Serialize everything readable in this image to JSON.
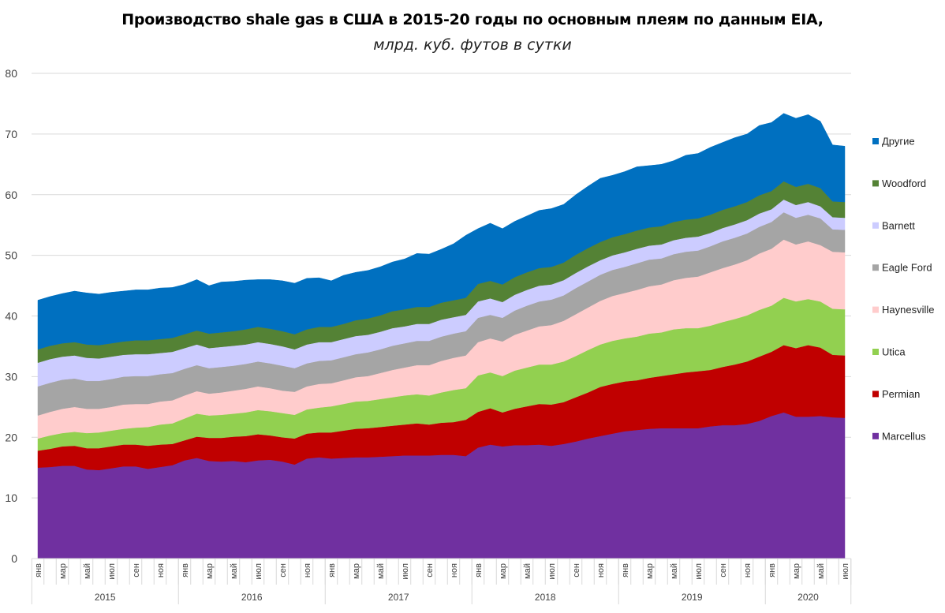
{
  "chart_data": {
    "type": "area",
    "stacked": true,
    "title": "Производство shale gas в США в 2015-20 годы по основным плеям по данным EIA,",
    "subtitle": "млрд. куб. футов в сутки",
    "xlabel": "",
    "ylabel": "",
    "ylim": [
      0,
      80
    ],
    "yticks": [
      0,
      10,
      20,
      30,
      40,
      50,
      60,
      70,
      80
    ],
    "grid": true,
    "legend_position": "right",
    "month_labels": [
      "янв",
      "",
      "мар",
      "",
      "май",
      "",
      "июл",
      "",
      "сен",
      "",
      "ноя",
      ""
    ],
    "years": [
      {
        "label": "2015",
        "months": 12
      },
      {
        "label": "2016",
        "months": 12
      },
      {
        "label": "2017",
        "months": 12
      },
      {
        "label": "2018",
        "months": 12
      },
      {
        "label": "2019",
        "months": 12
      },
      {
        "label": "2020",
        "months": 7
      }
    ],
    "series": [
      {
        "name": "Marcellus",
        "color": "#7030A0",
        "values": [
          15.0,
          15.1,
          15.3,
          15.3,
          14.7,
          14.6,
          14.9,
          15.2,
          15.2,
          14.8,
          15.1,
          15.4,
          16.2,
          16.6,
          16.1,
          16.0,
          16.1,
          15.9,
          16.2,
          16.3,
          16.0,
          15.5,
          16.5,
          16.7,
          16.5,
          16.6,
          16.7,
          16.7,
          16.8,
          16.9,
          17.0,
          17.0,
          17.0,
          17.1,
          17.1,
          16.9,
          18.3,
          18.8,
          18.5,
          18.7,
          18.7,
          18.8,
          18.6,
          18.9,
          19.3,
          19.8,
          20.2,
          20.6,
          21.0,
          21.2,
          21.4,
          21.5,
          21.5,
          21.5,
          21.5,
          21.8,
          22.0,
          22.0,
          22.2,
          22.7,
          23.5,
          24.1,
          23.4,
          23.4,
          23.5,
          23.3,
          23.2
        ]
      },
      {
        "name": "Permian",
        "color": "#C00000",
        "values": [
          2.8,
          3.0,
          3.2,
          3.3,
          3.5,
          3.6,
          3.6,
          3.6,
          3.6,
          3.8,
          3.7,
          3.5,
          3.3,
          3.5,
          3.8,
          3.9,
          4.0,
          4.3,
          4.3,
          4.0,
          4.0,
          4.3,
          4.1,
          4.1,
          4.3,
          4.5,
          4.7,
          4.8,
          4.9,
          5.0,
          5.1,
          5.3,
          5.1,
          5.3,
          5.4,
          6.0,
          5.9,
          6.0,
          5.6,
          6.0,
          6.4,
          6.7,
          6.8,
          6.9,
          7.3,
          7.6,
          8.1,
          8.2,
          8.2,
          8.2,
          8.4,
          8.6,
          8.9,
          9.2,
          9.4,
          9.3,
          9.6,
          10.0,
          10.3,
          10.6,
          10.6,
          11.1,
          11.3,
          11.8,
          11.3,
          10.3,
          10.3
        ]
      },
      {
        "name": "Utica",
        "color": "#92D050",
        "values": [
          2.0,
          2.2,
          2.2,
          2.3,
          2.5,
          2.6,
          2.6,
          2.6,
          2.8,
          3.1,
          3.3,
          3.4,
          3.6,
          3.8,
          3.7,
          3.8,
          3.8,
          3.9,
          4.0,
          4.0,
          4.0,
          3.9,
          4.0,
          4.1,
          4.3,
          4.4,
          4.5,
          4.5,
          4.6,
          4.7,
          4.8,
          4.8,
          4.8,
          5.0,
          5.3,
          5.2,
          6.0,
          5.9,
          6.0,
          6.3,
          6.4,
          6.5,
          6.6,
          6.7,
          6.8,
          7.0,
          7.0,
          7.1,
          7.1,
          7.2,
          7.3,
          7.2,
          7.4,
          7.3,
          7.1,
          7.3,
          7.4,
          7.5,
          7.6,
          7.7,
          7.6,
          7.8,
          7.7,
          7.6,
          7.6,
          7.6,
          7.6
        ]
      },
      {
        "name": "Haynesville",
        "color": "#FFCCCC",
        "values": [
          3.8,
          3.9,
          4.0,
          4.1,
          4.0,
          3.9,
          3.9,
          4.0,
          3.9,
          3.8,
          3.8,
          3.8,
          3.8,
          3.7,
          3.6,
          3.7,
          3.8,
          3.9,
          3.9,
          3.8,
          3.7,
          3.8,
          3.8,
          3.9,
          3.8,
          3.9,
          4.0,
          4.1,
          4.3,
          4.5,
          4.6,
          4.8,
          5.0,
          5.2,
          5.3,
          5.4,
          5.5,
          5.6,
          5.7,
          5.9,
          6.1,
          6.3,
          6.5,
          6.7,
          6.9,
          7.0,
          7.2,
          7.4,
          7.5,
          7.7,
          7.8,
          7.9,
          8.1,
          8.3,
          8.5,
          8.8,
          8.9,
          9.0,
          9.1,
          9.3,
          9.4,
          9.6,
          9.4,
          9.5,
          9.3,
          9.4,
          9.4
        ]
      },
      {
        "name": "Eagle Ford",
        "color": "#A5A5A5",
        "values": [
          4.8,
          4.8,
          4.8,
          4.7,
          4.6,
          4.6,
          4.6,
          4.6,
          4.6,
          4.6,
          4.5,
          4.5,
          4.4,
          4.3,
          4.2,
          4.2,
          4.1,
          4.1,
          4.1,
          4.1,
          4.1,
          3.9,
          3.8,
          3.8,
          3.8,
          3.8,
          3.8,
          3.9,
          3.9,
          4.0,
          4.0,
          4.0,
          4.0,
          4.0,
          4.0,
          4.0,
          4.0,
          3.9,
          3.9,
          4.0,
          4.1,
          4.1,
          4.2,
          4.2,
          4.3,
          4.3,
          4.3,
          4.3,
          4.3,
          4.4,
          4.4,
          4.3,
          4.3,
          4.3,
          4.3,
          4.3,
          4.4,
          4.4,
          4.4,
          4.4,
          4.4,
          4.5,
          4.4,
          4.4,
          4.4,
          3.7,
          3.7
        ]
      },
      {
        "name": "Barnett",
        "color": "#CCCCFF",
        "values": [
          3.9,
          3.9,
          3.8,
          3.8,
          3.8,
          3.7,
          3.7,
          3.6,
          3.6,
          3.6,
          3.5,
          3.5,
          3.4,
          3.4,
          3.3,
          3.3,
          3.3,
          3.2,
          3.2,
          3.2,
          3.2,
          3.1,
          3.1,
          3.1,
          3.0,
          3.0,
          3.0,
          2.9,
          2.9,
          2.9,
          2.8,
          2.8,
          2.8,
          2.8,
          2.7,
          2.7,
          2.7,
          2.7,
          2.6,
          2.6,
          2.6,
          2.6,
          2.5,
          2.5,
          2.5,
          2.5,
          2.4,
          2.4,
          2.4,
          2.4,
          2.3,
          2.3,
          2.3,
          2.3,
          2.3,
          2.2,
          2.2,
          2.2,
          2.2,
          2.2,
          2.1,
          2.1,
          2.1,
          2.1,
          2.0,
          2.0,
          2.0
        ]
      },
      {
        "name": "Woodford",
        "color": "#548235",
        "values": [
          2.2,
          2.2,
          2.2,
          2.2,
          2.2,
          2.2,
          2.2,
          2.2,
          2.3,
          2.3,
          2.3,
          2.3,
          2.3,
          2.3,
          2.4,
          2.4,
          2.4,
          2.5,
          2.5,
          2.5,
          2.5,
          2.5,
          2.5,
          2.5,
          2.5,
          2.5,
          2.6,
          2.7,
          2.7,
          2.8,
          2.8,
          2.8,
          2.8,
          2.8,
          2.8,
          2.8,
          2.9,
          2.9,
          2.9,
          2.9,
          2.9,
          2.9,
          2.9,
          2.9,
          3.0,
          3.0,
          3.0,
          3.0,
          3.0,
          3.0,
          3.0,
          3.0,
          3.0,
          3.0,
          3.0,
          3.0,
          3.0,
          3.0,
          3.0,
          3.0,
          3.0,
          3.0,
          3.0,
          3.0,
          3.0,
          2.6,
          2.6
        ]
      },
      {
        "name": "Другие",
        "color": "#0070C0",
        "values": [
          8.1,
          8.1,
          8.2,
          8.4,
          8.5,
          8.4,
          8.4,
          8.3,
          8.3,
          8.3,
          8.4,
          8.3,
          8.2,
          8.4,
          7.9,
          8.3,
          8.2,
          8.1,
          7.8,
          8.1,
          8.3,
          8.4,
          8.4,
          8.1,
          7.6,
          8.0,
          7.9,
          7.9,
          8.0,
          8.1,
          8.3,
          8.8,
          8.7,
          8.8,
          9.3,
          10.3,
          9.1,
          9.5,
          9.2,
          9.2,
          9.3,
          9.5,
          9.6,
          9.6,
          9.9,
          10.2,
          10.5,
          10.2,
          10.3,
          10.5,
          10.2,
          10.2,
          10.1,
          10.6,
          10.7,
          11.1,
          11.1,
          11.3,
          11.2,
          11.5,
          11.3,
          11.2,
          11.3,
          11.4,
          11.0,
          9.3,
          9.2
        ]
      }
    ]
  }
}
